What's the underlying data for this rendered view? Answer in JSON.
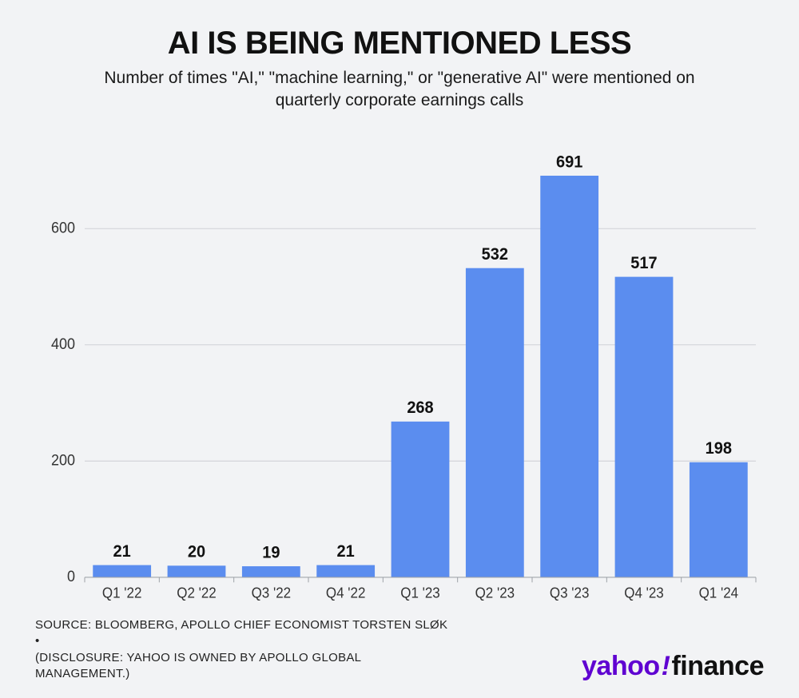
{
  "title": "AI IS BEING MENTIONED LESS",
  "subtitle": "Number of times \"AI,\" \"machine learning,\" or \"generative AI\" were mentioned on quarterly corporate earnings calls",
  "chart": {
    "type": "bar",
    "categories": [
      "Q1 '22",
      "Q2 '22",
      "Q3 '22",
      "Q4 '22",
      "Q1 '23",
      "Q2 '23",
      "Q3 '23",
      "Q4 '23",
      "Q1 '24"
    ],
    "values": [
      21,
      20,
      19,
      21,
      268,
      532,
      691,
      517,
      198
    ],
    "bar_color": "#5b8def",
    "background_color": "#f2f3f5",
    "grid_color": "#d0d2d6",
    "axis_color": "#9ea2a8",
    "text_color": "#111111",
    "bar_label_fontsize": 20,
    "bar_label_fontweight": 700,
    "axis_label_fontsize": 18,
    "title_fontsize": 40,
    "subtitle_fontsize": 21,
    "ylim": [
      0,
      700
    ],
    "y_ticks": [
      0,
      200,
      400,
      600
    ],
    "bar_width_ratio": 0.78,
    "show_value_labels": true
  },
  "footer": {
    "source": "SOURCE: BLOOMBERG, APOLLO CHIEF ECONOMIST TORSTEN SLØK •",
    "disclosure": "(DISCLOSURE: YAHOO IS OWNED BY APOLLO GLOBAL MANAGEMENT.)",
    "logo_brand": "yahoo",
    "logo_bang": "!",
    "logo_section": "finance",
    "logo_brand_color": "#5f01d1",
    "logo_section_color": "#111111"
  }
}
